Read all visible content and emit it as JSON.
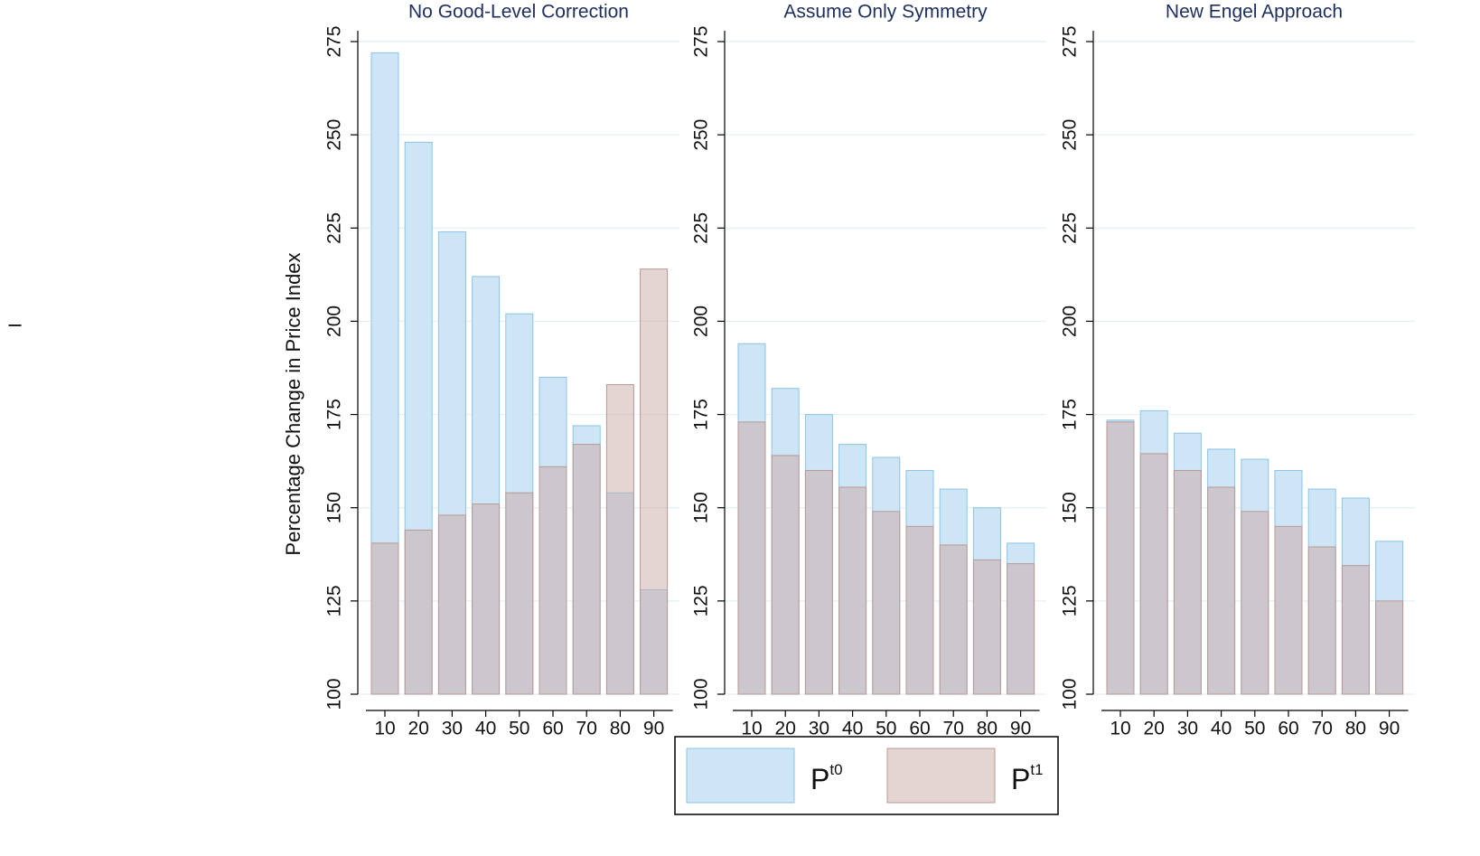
{
  "side_mark": "I",
  "chart_data": [
    {
      "type": "bar",
      "title": "No Good-Level Correction",
      "ylabel": "Percentage Change in Price Index",
      "categories": [
        10,
        20,
        30,
        40,
        50,
        60,
        70,
        80,
        90
      ],
      "series": [
        {
          "name": "P",
          "superscript": "t0",
          "color": "#cde5f5",
          "values": [
            272,
            248,
            224,
            212,
            202,
            185,
            172,
            154,
            128
          ]
        },
        {
          "name": "P",
          "superscript": "t1",
          "color": "#c9a9a6",
          "values": [
            140.5,
            144,
            148,
            151,
            154,
            161,
            167,
            183,
            214
          ]
        }
      ],
      "ylim": [
        100,
        275
      ],
      "yticks": [
        100,
        125,
        150,
        175,
        200,
        225,
        250,
        275
      ],
      "grid": true
    },
    {
      "type": "bar",
      "title": "Assume Only Symmetry",
      "categories": [
        10,
        20,
        30,
        40,
        50,
        60,
        70,
        80,
        90
      ],
      "series": [
        {
          "name": "P",
          "superscript": "t0",
          "color": "#cde5f5",
          "values": [
            194,
            182,
            175,
            167,
            163.5,
            160,
            155,
            150,
            140.5
          ]
        },
        {
          "name": "P",
          "superscript": "t1",
          "color": "#c9a9a6",
          "values": [
            173,
            164,
            160,
            155.5,
            149,
            145,
            140,
            136,
            135
          ]
        }
      ],
      "ylim": [
        100,
        275
      ],
      "yticks": [
        100,
        125,
        150,
        175,
        200,
        225,
        250,
        275
      ],
      "grid": true
    },
    {
      "type": "bar",
      "title": "New Engel Approach",
      "categories": [
        10,
        20,
        30,
        40,
        50,
        60,
        70,
        80,
        90
      ],
      "series": [
        {
          "name": "P",
          "superscript": "t0",
          "color": "#cde5f5",
          "values": [
            173.5,
            176,
            170,
            165.7,
            163,
            160,
            155,
            152.6,
            141
          ]
        },
        {
          "name": "P",
          "superscript": "t1",
          "color": "#c9a9a6",
          "values": [
            173,
            164.5,
            160,
            155.5,
            149,
            145,
            139.5,
            134.5,
            125
          ]
        }
      ],
      "ylim": [
        100,
        275
      ],
      "yticks": [
        100,
        125,
        150,
        175,
        200,
        225,
        250,
        275
      ],
      "grid": true
    }
  ]
}
